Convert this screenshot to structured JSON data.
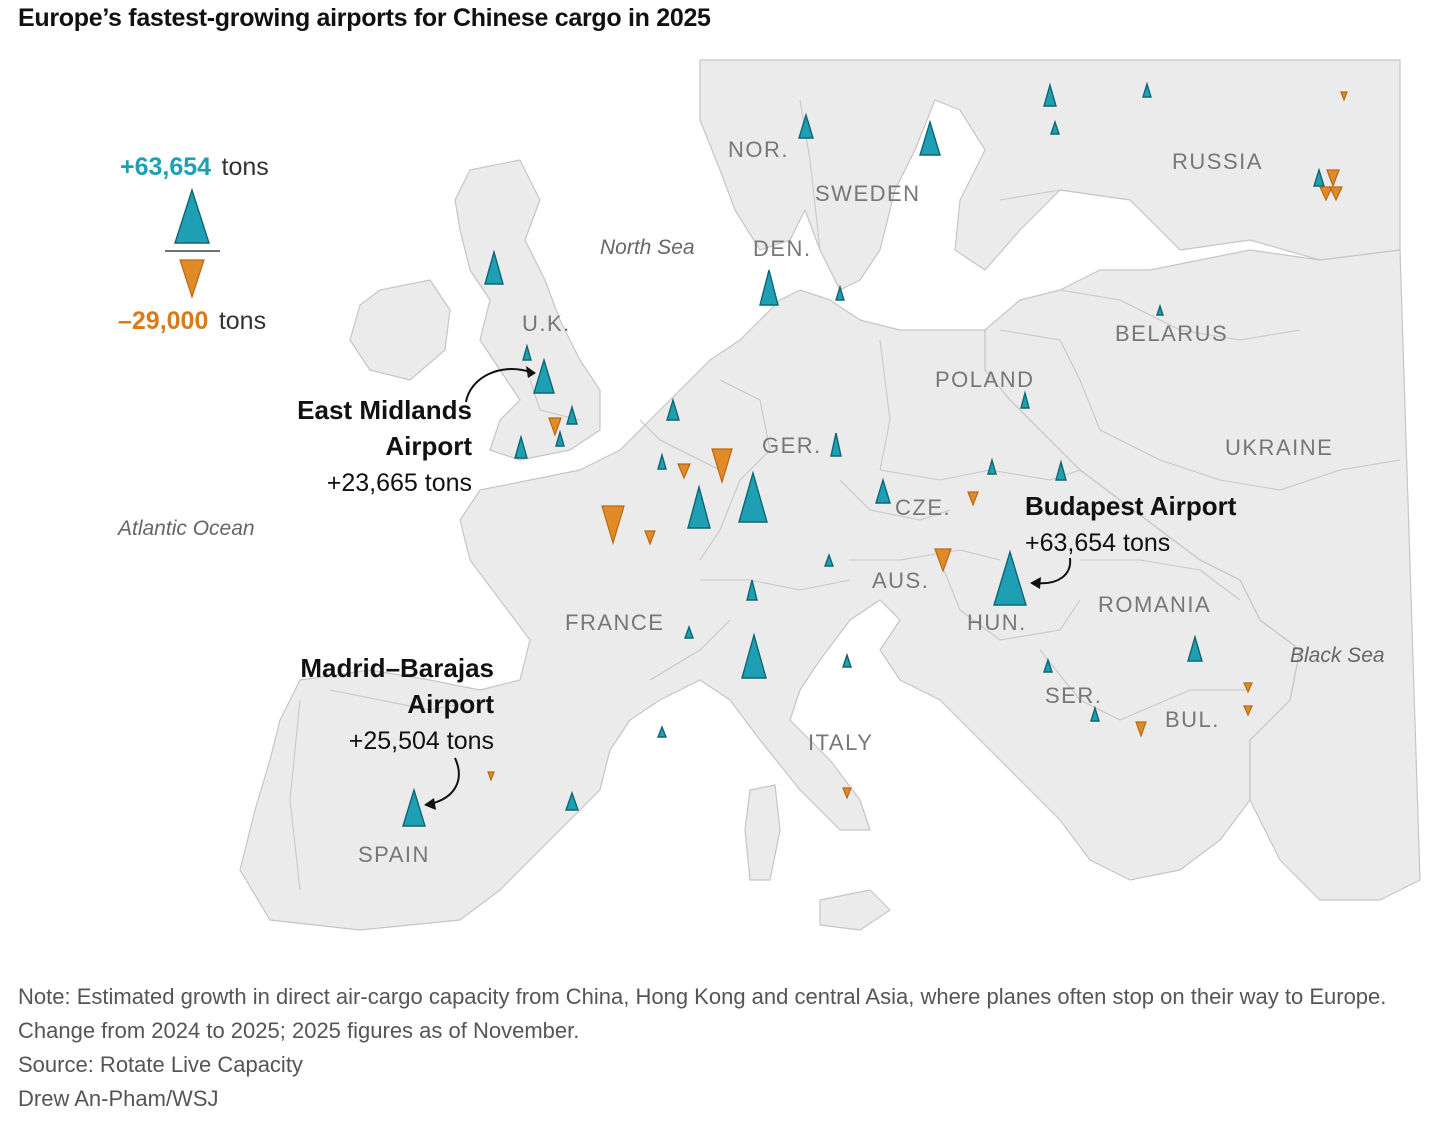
{
  "title": "Europe’s fastest-growing airports for Chinese cargo in 2025",
  "legend": {
    "max_value": "+63,654",
    "max_unit": "tons",
    "min_value": "–29,000",
    "min_unit": "tons",
    "positive_color": "#1e9fb3",
    "negative_color": "#e08a28"
  },
  "labels": {
    "countries": [
      "NOR.",
      "SWEDEN",
      "RUSSIA",
      "DEN.",
      "U.K.",
      "BELARUS",
      "POLAND",
      "GER.",
      "UKRAINE",
      "CZE.",
      "AUS.",
      "FRANCE",
      "HUN.",
      "ROMANIA",
      "SER.",
      "BUL.",
      "ITALY",
      "SPAIN"
    ],
    "seas": [
      "North Sea",
      "Atlantic Ocean",
      "Black Sea"
    ]
  },
  "callouts": [
    {
      "name_line1": "East Midlands",
      "name_line2": "Airport",
      "value": "+23,665 tons",
      "change_tons": 23665
    },
    {
      "name_line1": "Budapest Airport",
      "name_line2": "",
      "value": "+63,654 tons",
      "change_tons": 63654
    },
    {
      "name_line1": "Madrid–Barajas",
      "name_line2": "Airport",
      "value": "+25,504 tons",
      "change_tons": 25504
    }
  ],
  "footer": {
    "note": "Note: Estimated growth in direct air-cargo capacity from China, Hong Kong and central Asia, where planes often stop on their way to Europe. Change from 2024 to 2025; 2025 figures as of November.",
    "source": "Source: Rotate Live Capacity",
    "credit": "Drew An-Pham/WSJ"
  }
}
